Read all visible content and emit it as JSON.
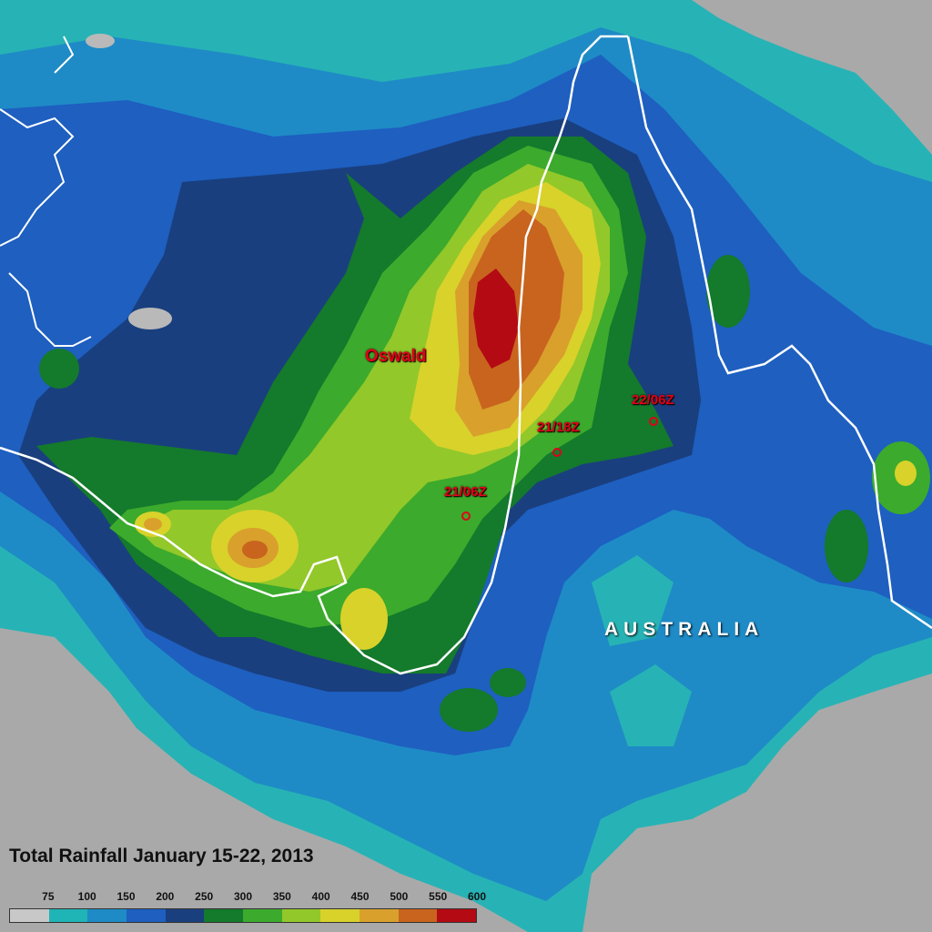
{
  "map": {
    "title": "Total Rainfall January 15-22, 2013",
    "country_label": "AUSTRALIA",
    "storm_name": "Oswald",
    "track_points": [
      {
        "label": "22/06Z"
      },
      {
        "label": "21/18Z"
      },
      {
        "label": "21/06Z"
      }
    ]
  },
  "legend": {
    "unit_note": "",
    "ticks": [
      "75",
      "100",
      "150",
      "200",
      "250",
      "300",
      "350",
      "400",
      "450",
      "500",
      "550",
      "600"
    ],
    "colors": [
      "#c8c8c8",
      "#1fb4b6",
      "#1e8bc6",
      "#1e5fc0",
      "#1a3f7e",
      "#147a2c",
      "#3caa2c",
      "#92c82a",
      "#d8d22a",
      "#d9a02c",
      "#c8641e",
      "#b40a14"
    ]
  },
  "colors": {
    "coastline": "#ffffff",
    "storm_marker": "#e00018",
    "land_background": "#a8a8a8"
  }
}
